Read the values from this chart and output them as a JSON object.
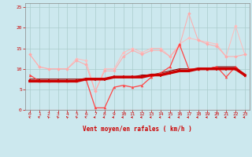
{
  "x": [
    0,
    1,
    2,
    3,
    4,
    5,
    6,
    7,
    8,
    9,
    10,
    11,
    12,
    13,
    14,
    15,
    16,
    17,
    18,
    19,
    20,
    21,
    22,
    23
  ],
  "line1": [
    13.5,
    10.5,
    10,
    10,
    10,
    12.5,
    12,
    4.5,
    10,
    10,
    14,
    15,
    14,
    15,
    15,
    13,
    16,
    17.5,
    17,
    16.5,
    16,
    13,
    20.5,
    13.5
  ],
  "line2": [
    13.5,
    10.5,
    10,
    10,
    10,
    12,
    11,
    4.5,
    9.5,
    9.5,
    13,
    14.5,
    13.5,
    14.5,
    14.5,
    13,
    15.5,
    23.5,
    17,
    16,
    15.5,
    13,
    13,
    13.5
  ],
  "line3": [
    8.5,
    7,
    7,
    7,
    7,
    7,
    7.5,
    0.5,
    0.5,
    5.5,
    6,
    5.5,
    6,
    8,
    9,
    10.5,
    16,
    10,
    10,
    10,
    10.5,
    8,
    10.5,
    8.5
  ],
  "line4": [
    7,
    7,
    7,
    7,
    7,
    7,
    7.5,
    7.5,
    7.5,
    8,
    8,
    8,
    8,
    8.5,
    8.5,
    9,
    9.5,
    9.5,
    10,
    10,
    10,
    10,
    10,
    8.5
  ],
  "line5": [
    7.5,
    7.5,
    7.5,
    7.5,
    7.5,
    7.5,
    7.5,
    7.5,
    7.5,
    8,
    8,
    8,
    8.5,
    8.5,
    9,
    9.5,
    10,
    10,
    10,
    10,
    10.5,
    10.5,
    10.5,
    8.5
  ],
  "bg_color": "#cce8ee",
  "grid_color": "#aacccc",
  "line1_color": "#ffbbbb",
  "line2_color": "#ffaaaa",
  "line3_color": "#ff4444",
  "line4_color": "#cc0000",
  "line5_color": "#880000",
  "xlabel": "Vent moyen/en rafales ( km/h )",
  "ylim": [
    0,
    26
  ],
  "xlim": [
    0,
    23
  ],
  "yticks": [
    0,
    5,
    10,
    15,
    20,
    25
  ],
  "xticks": [
    0,
    1,
    2,
    3,
    4,
    5,
    6,
    7,
    8,
    9,
    10,
    11,
    12,
    13,
    14,
    15,
    16,
    17,
    18,
    19,
    20,
    21,
    22,
    23
  ],
  "arrow_angles": [
    225,
    225,
    210,
    210,
    210,
    210,
    225,
    270,
    270,
    270,
    270,
    270,
    270,
    270,
    270,
    270,
    270,
    270,
    270,
    270,
    270,
    270,
    270,
    270
  ]
}
